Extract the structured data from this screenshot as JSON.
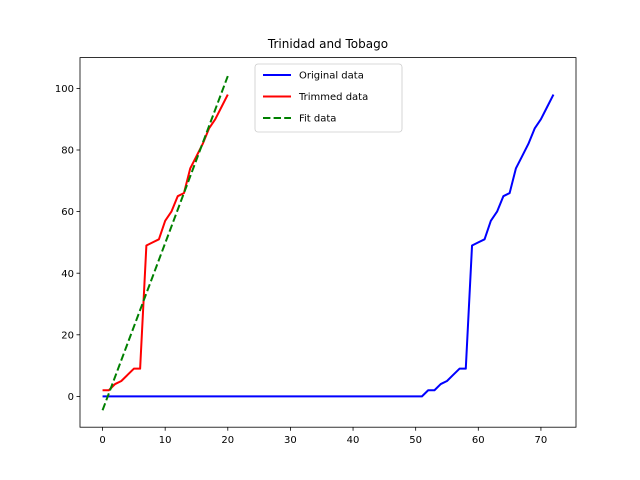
{
  "chart_data": {
    "type": "line",
    "title": "Trinidad and Tobago",
    "xlabel": "",
    "ylabel": "",
    "xlim": [
      -3.6,
      75.6
    ],
    "ylim": [
      -10,
      110
    ],
    "xticks": [
      0,
      10,
      20,
      30,
      40,
      50,
      60,
      70
    ],
    "yticks": [
      0,
      20,
      40,
      60,
      80,
      100
    ],
    "grid": false,
    "legend_position": "top-center",
    "series": [
      {
        "name": "Original data",
        "color": "#0000ff",
        "dash": "solid",
        "x": [
          0,
          1,
          2,
          3,
          4,
          5,
          6,
          7,
          8,
          9,
          10,
          11,
          12,
          13,
          14,
          15,
          16,
          17,
          18,
          19,
          20,
          21,
          22,
          23,
          24,
          25,
          26,
          27,
          28,
          29,
          30,
          31,
          32,
          33,
          34,
          35,
          36,
          37,
          38,
          39,
          40,
          41,
          42,
          43,
          44,
          45,
          46,
          47,
          48,
          49,
          50,
          51,
          52,
          53,
          54,
          55,
          56,
          57,
          58,
          59,
          60,
          61,
          62,
          63,
          64,
          65,
          66,
          67,
          68,
          69,
          70,
          71,
          72
        ],
        "y": [
          0,
          0,
          0,
          0,
          0,
          0,
          0,
          0,
          0,
          0,
          0,
          0,
          0,
          0,
          0,
          0,
          0,
          0,
          0,
          0,
          0,
          0,
          0,
          0,
          0,
          0,
          0,
          0,
          0,
          0,
          0,
          0,
          0,
          0,
          0,
          0,
          0,
          0,
          0,
          0,
          0,
          0,
          0,
          0,
          0,
          0,
          0,
          0,
          0,
          0,
          0,
          0,
          2,
          2,
          4,
          5,
          7,
          9,
          9,
          49,
          50,
          51,
          57,
          60,
          65,
          66,
          74,
          78,
          82,
          87,
          90,
          94,
          98
        ]
      },
      {
        "name": "Trimmed data",
        "color": "#ff0000",
        "dash": "solid",
        "x": [
          0,
          1,
          2,
          3,
          4,
          5,
          6,
          7,
          8,
          9,
          10,
          11,
          12,
          13,
          14,
          15,
          16,
          17,
          18,
          19,
          20
        ],
        "y": [
          2,
          2,
          4,
          5,
          7,
          9,
          9,
          49,
          50,
          51,
          57,
          60,
          65,
          66,
          74,
          78,
          82,
          87,
          90,
          94,
          98
        ]
      },
      {
        "name": "Fit data",
        "color": "#008000",
        "dash": "dashed",
        "x": [
          0,
          20
        ],
        "y": [
          -4.5,
          104
        ]
      }
    ]
  }
}
